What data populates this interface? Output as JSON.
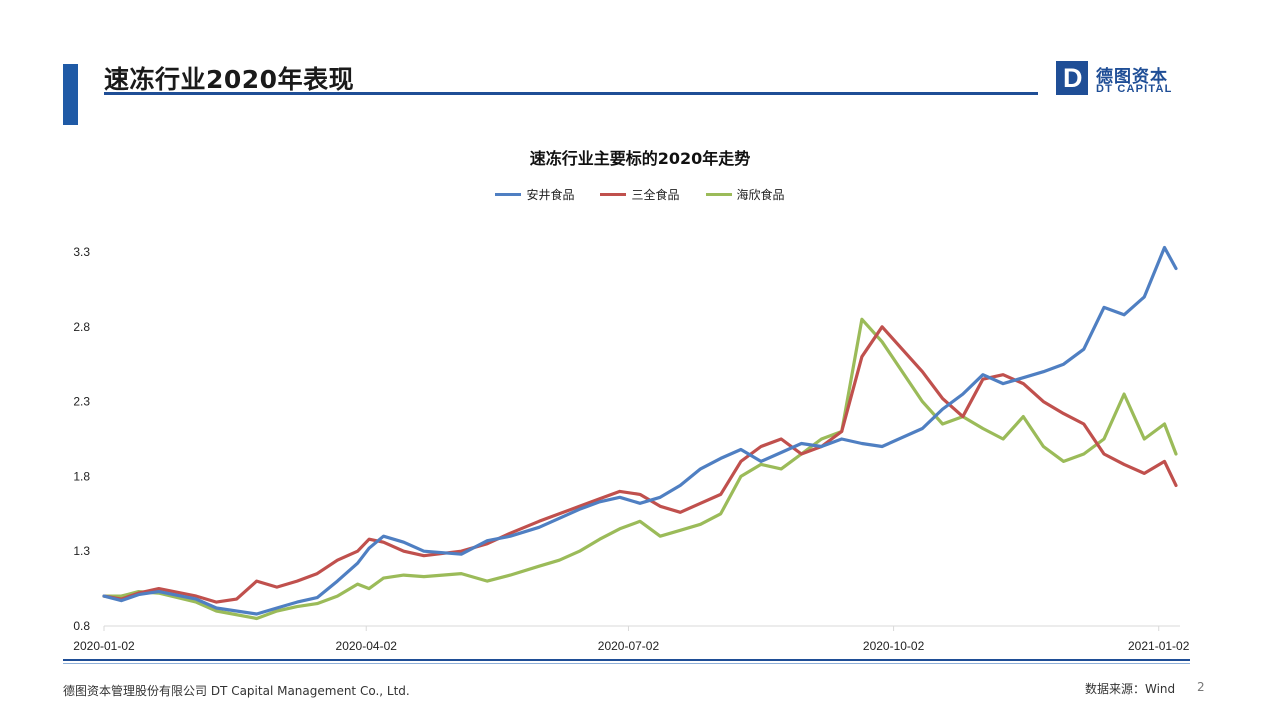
{
  "header": {
    "title": "速冻行业2020年表现",
    "logo_cn": "德图资本",
    "logo_en": "DT CAPITAL",
    "logo_mark": "D"
  },
  "footer": {
    "company": "德图资本管理股份有限公司  DT Capital  Management  Co., Ltd.",
    "source": "数据来源：Wind",
    "page_number": "2"
  },
  "colors": {
    "accent": "#1f4e96",
    "series": [
      "#4f7fc2",
      "#c0504d",
      "#9bbb59"
    ]
  },
  "chart_data": {
    "type": "line",
    "title": "速冻行业主要标的2020年走势",
    "xlabel": "",
    "ylabel": "",
    "xlim": [
      "2020-01-02",
      "2021-01-08"
    ],
    "ylim": [
      0.8,
      3.3
    ],
    "y_ticks": [
      "0.8",
      "1.3",
      "1.8",
      "2.3",
      "2.8",
      "3.3"
    ],
    "x_ticks": [
      "2020-01-02",
      "2020-04-02",
      "2020-07-02",
      "2020-10-02",
      "2021-01-02"
    ],
    "legend_position": "top",
    "grid": false,
    "series": [
      {
        "name": "安井食品",
        "color": "#4f7fc2",
        "points": [
          [
            "2020-01-02",
            1.0
          ],
          [
            "2020-01-08",
            0.97
          ],
          [
            "2020-01-14",
            1.01
          ],
          [
            "2020-01-21",
            1.03
          ],
          [
            "2020-02-03",
            0.98
          ],
          [
            "2020-02-10",
            0.92
          ],
          [
            "2020-02-24",
            0.88
          ],
          [
            "2020-03-02",
            0.92
          ],
          [
            "2020-03-09",
            0.96
          ],
          [
            "2020-03-16",
            0.99
          ],
          [
            "2020-03-23",
            1.1
          ],
          [
            "2020-03-30",
            1.22
          ],
          [
            "2020-04-03",
            1.32
          ],
          [
            "2020-04-08",
            1.4
          ],
          [
            "2020-04-15",
            1.36
          ],
          [
            "2020-04-22",
            1.3
          ],
          [
            "2020-05-05",
            1.28
          ],
          [
            "2020-05-14",
            1.37
          ],
          [
            "2020-05-22",
            1.4
          ],
          [
            "2020-06-01",
            1.46
          ],
          [
            "2020-06-08",
            1.52
          ],
          [
            "2020-06-15",
            1.58
          ],
          [
            "2020-06-22",
            1.63
          ],
          [
            "2020-06-29",
            1.66
          ],
          [
            "2020-07-06",
            1.62
          ],
          [
            "2020-07-13",
            1.66
          ],
          [
            "2020-07-20",
            1.74
          ],
          [
            "2020-07-27",
            1.85
          ],
          [
            "2020-08-03",
            1.92
          ],
          [
            "2020-08-10",
            1.98
          ],
          [
            "2020-08-17",
            1.9
          ],
          [
            "2020-08-24",
            1.96
          ],
          [
            "2020-08-31",
            2.02
          ],
          [
            "2020-09-07",
            2.0
          ],
          [
            "2020-09-14",
            2.05
          ],
          [
            "2020-09-21",
            2.02
          ],
          [
            "2020-09-28",
            2.0
          ],
          [
            "2020-10-12",
            2.12
          ],
          [
            "2020-10-19",
            2.25
          ],
          [
            "2020-10-26",
            2.35
          ],
          [
            "2020-11-02",
            2.48
          ],
          [
            "2020-11-09",
            2.42
          ],
          [
            "2020-11-16",
            2.46
          ],
          [
            "2020-11-23",
            2.5
          ],
          [
            "2020-11-30",
            2.55
          ],
          [
            "2020-12-07",
            2.65
          ],
          [
            "2020-12-14",
            2.93
          ],
          [
            "2020-12-21",
            2.88
          ],
          [
            "2020-12-28",
            3.0
          ],
          [
            "2021-01-04",
            3.33
          ],
          [
            "2021-01-08",
            3.19
          ]
        ]
      },
      {
        "name": "三全食品",
        "color": "#c0504d",
        "points": [
          [
            "2020-01-02",
            1.0
          ],
          [
            "2020-01-08",
            0.98
          ],
          [
            "2020-01-14",
            1.02
          ],
          [
            "2020-01-21",
            1.05
          ],
          [
            "2020-02-03",
            1.0
          ],
          [
            "2020-02-10",
            0.96
          ],
          [
            "2020-02-17",
            0.98
          ],
          [
            "2020-02-24",
            1.1
          ],
          [
            "2020-03-02",
            1.06
          ],
          [
            "2020-03-09",
            1.1
          ],
          [
            "2020-03-16",
            1.15
          ],
          [
            "2020-03-23",
            1.24
          ],
          [
            "2020-03-30",
            1.3
          ],
          [
            "2020-04-03",
            1.38
          ],
          [
            "2020-04-08",
            1.36
          ],
          [
            "2020-04-15",
            1.3
          ],
          [
            "2020-04-22",
            1.27
          ],
          [
            "2020-05-05",
            1.3
          ],
          [
            "2020-05-14",
            1.35
          ],
          [
            "2020-05-22",
            1.42
          ],
          [
            "2020-06-01",
            1.5
          ],
          [
            "2020-06-08",
            1.55
          ],
          [
            "2020-06-15",
            1.6
          ],
          [
            "2020-06-22",
            1.65
          ],
          [
            "2020-06-29",
            1.7
          ],
          [
            "2020-07-06",
            1.68
          ],
          [
            "2020-07-13",
            1.6
          ],
          [
            "2020-07-20",
            1.56
          ],
          [
            "2020-07-27",
            1.62
          ],
          [
            "2020-08-03",
            1.68
          ],
          [
            "2020-08-10",
            1.9
          ],
          [
            "2020-08-17",
            2.0
          ],
          [
            "2020-08-24",
            2.05
          ],
          [
            "2020-08-31",
            1.95
          ],
          [
            "2020-09-07",
            2.0
          ],
          [
            "2020-09-14",
            2.1
          ],
          [
            "2020-09-21",
            2.6
          ],
          [
            "2020-09-28",
            2.8
          ],
          [
            "2020-10-12",
            2.5
          ],
          [
            "2020-10-19",
            2.32
          ],
          [
            "2020-10-26",
            2.2
          ],
          [
            "2020-11-02",
            2.45
          ],
          [
            "2020-11-09",
            2.48
          ],
          [
            "2020-11-16",
            2.42
          ],
          [
            "2020-11-23",
            2.3
          ],
          [
            "2020-11-30",
            2.22
          ],
          [
            "2020-12-07",
            2.15
          ],
          [
            "2020-12-14",
            1.95
          ],
          [
            "2020-12-21",
            1.88
          ],
          [
            "2020-12-28",
            1.82
          ],
          [
            "2021-01-04",
            1.9
          ],
          [
            "2021-01-08",
            1.74
          ]
        ]
      },
      {
        "name": "海欣食品",
        "color": "#9bbb59",
        "points": [
          [
            "2020-01-02",
            1.0
          ],
          [
            "2020-01-08",
            1.0
          ],
          [
            "2020-01-14",
            1.03
          ],
          [
            "2020-01-21",
            1.02
          ],
          [
            "2020-02-03",
            0.96
          ],
          [
            "2020-02-10",
            0.9
          ],
          [
            "2020-02-24",
            0.85
          ],
          [
            "2020-03-02",
            0.9
          ],
          [
            "2020-03-09",
            0.93
          ],
          [
            "2020-03-16",
            0.95
          ],
          [
            "2020-03-23",
            1.0
          ],
          [
            "2020-03-30",
            1.08
          ],
          [
            "2020-04-03",
            1.05
          ],
          [
            "2020-04-08",
            1.12
          ],
          [
            "2020-04-15",
            1.14
          ],
          [
            "2020-04-22",
            1.13
          ],
          [
            "2020-05-05",
            1.15
          ],
          [
            "2020-05-14",
            1.1
          ],
          [
            "2020-05-22",
            1.14
          ],
          [
            "2020-06-01",
            1.2
          ],
          [
            "2020-06-08",
            1.24
          ],
          [
            "2020-06-15",
            1.3
          ],
          [
            "2020-06-22",
            1.38
          ],
          [
            "2020-06-29",
            1.45
          ],
          [
            "2020-07-06",
            1.5
          ],
          [
            "2020-07-13",
            1.4
          ],
          [
            "2020-07-20",
            1.44
          ],
          [
            "2020-07-27",
            1.48
          ],
          [
            "2020-08-03",
            1.55
          ],
          [
            "2020-08-10",
            1.8
          ],
          [
            "2020-08-17",
            1.88
          ],
          [
            "2020-08-24",
            1.85
          ],
          [
            "2020-08-31",
            1.95
          ],
          [
            "2020-09-07",
            2.05
          ],
          [
            "2020-09-14",
            2.1
          ],
          [
            "2020-09-21",
            2.85
          ],
          [
            "2020-09-28",
            2.7
          ],
          [
            "2020-10-12",
            2.3
          ],
          [
            "2020-10-19",
            2.15
          ],
          [
            "2020-10-26",
            2.2
          ],
          [
            "2020-11-02",
            2.12
          ],
          [
            "2020-11-09",
            2.05
          ],
          [
            "2020-11-16",
            2.2
          ],
          [
            "2020-11-23",
            2.0
          ],
          [
            "2020-11-30",
            1.9
          ],
          [
            "2020-12-07",
            1.95
          ],
          [
            "2020-12-14",
            2.05
          ],
          [
            "2020-12-21",
            2.35
          ],
          [
            "2020-12-28",
            2.05
          ],
          [
            "2021-01-04",
            2.15
          ],
          [
            "2021-01-08",
            1.95
          ]
        ]
      }
    ]
  }
}
